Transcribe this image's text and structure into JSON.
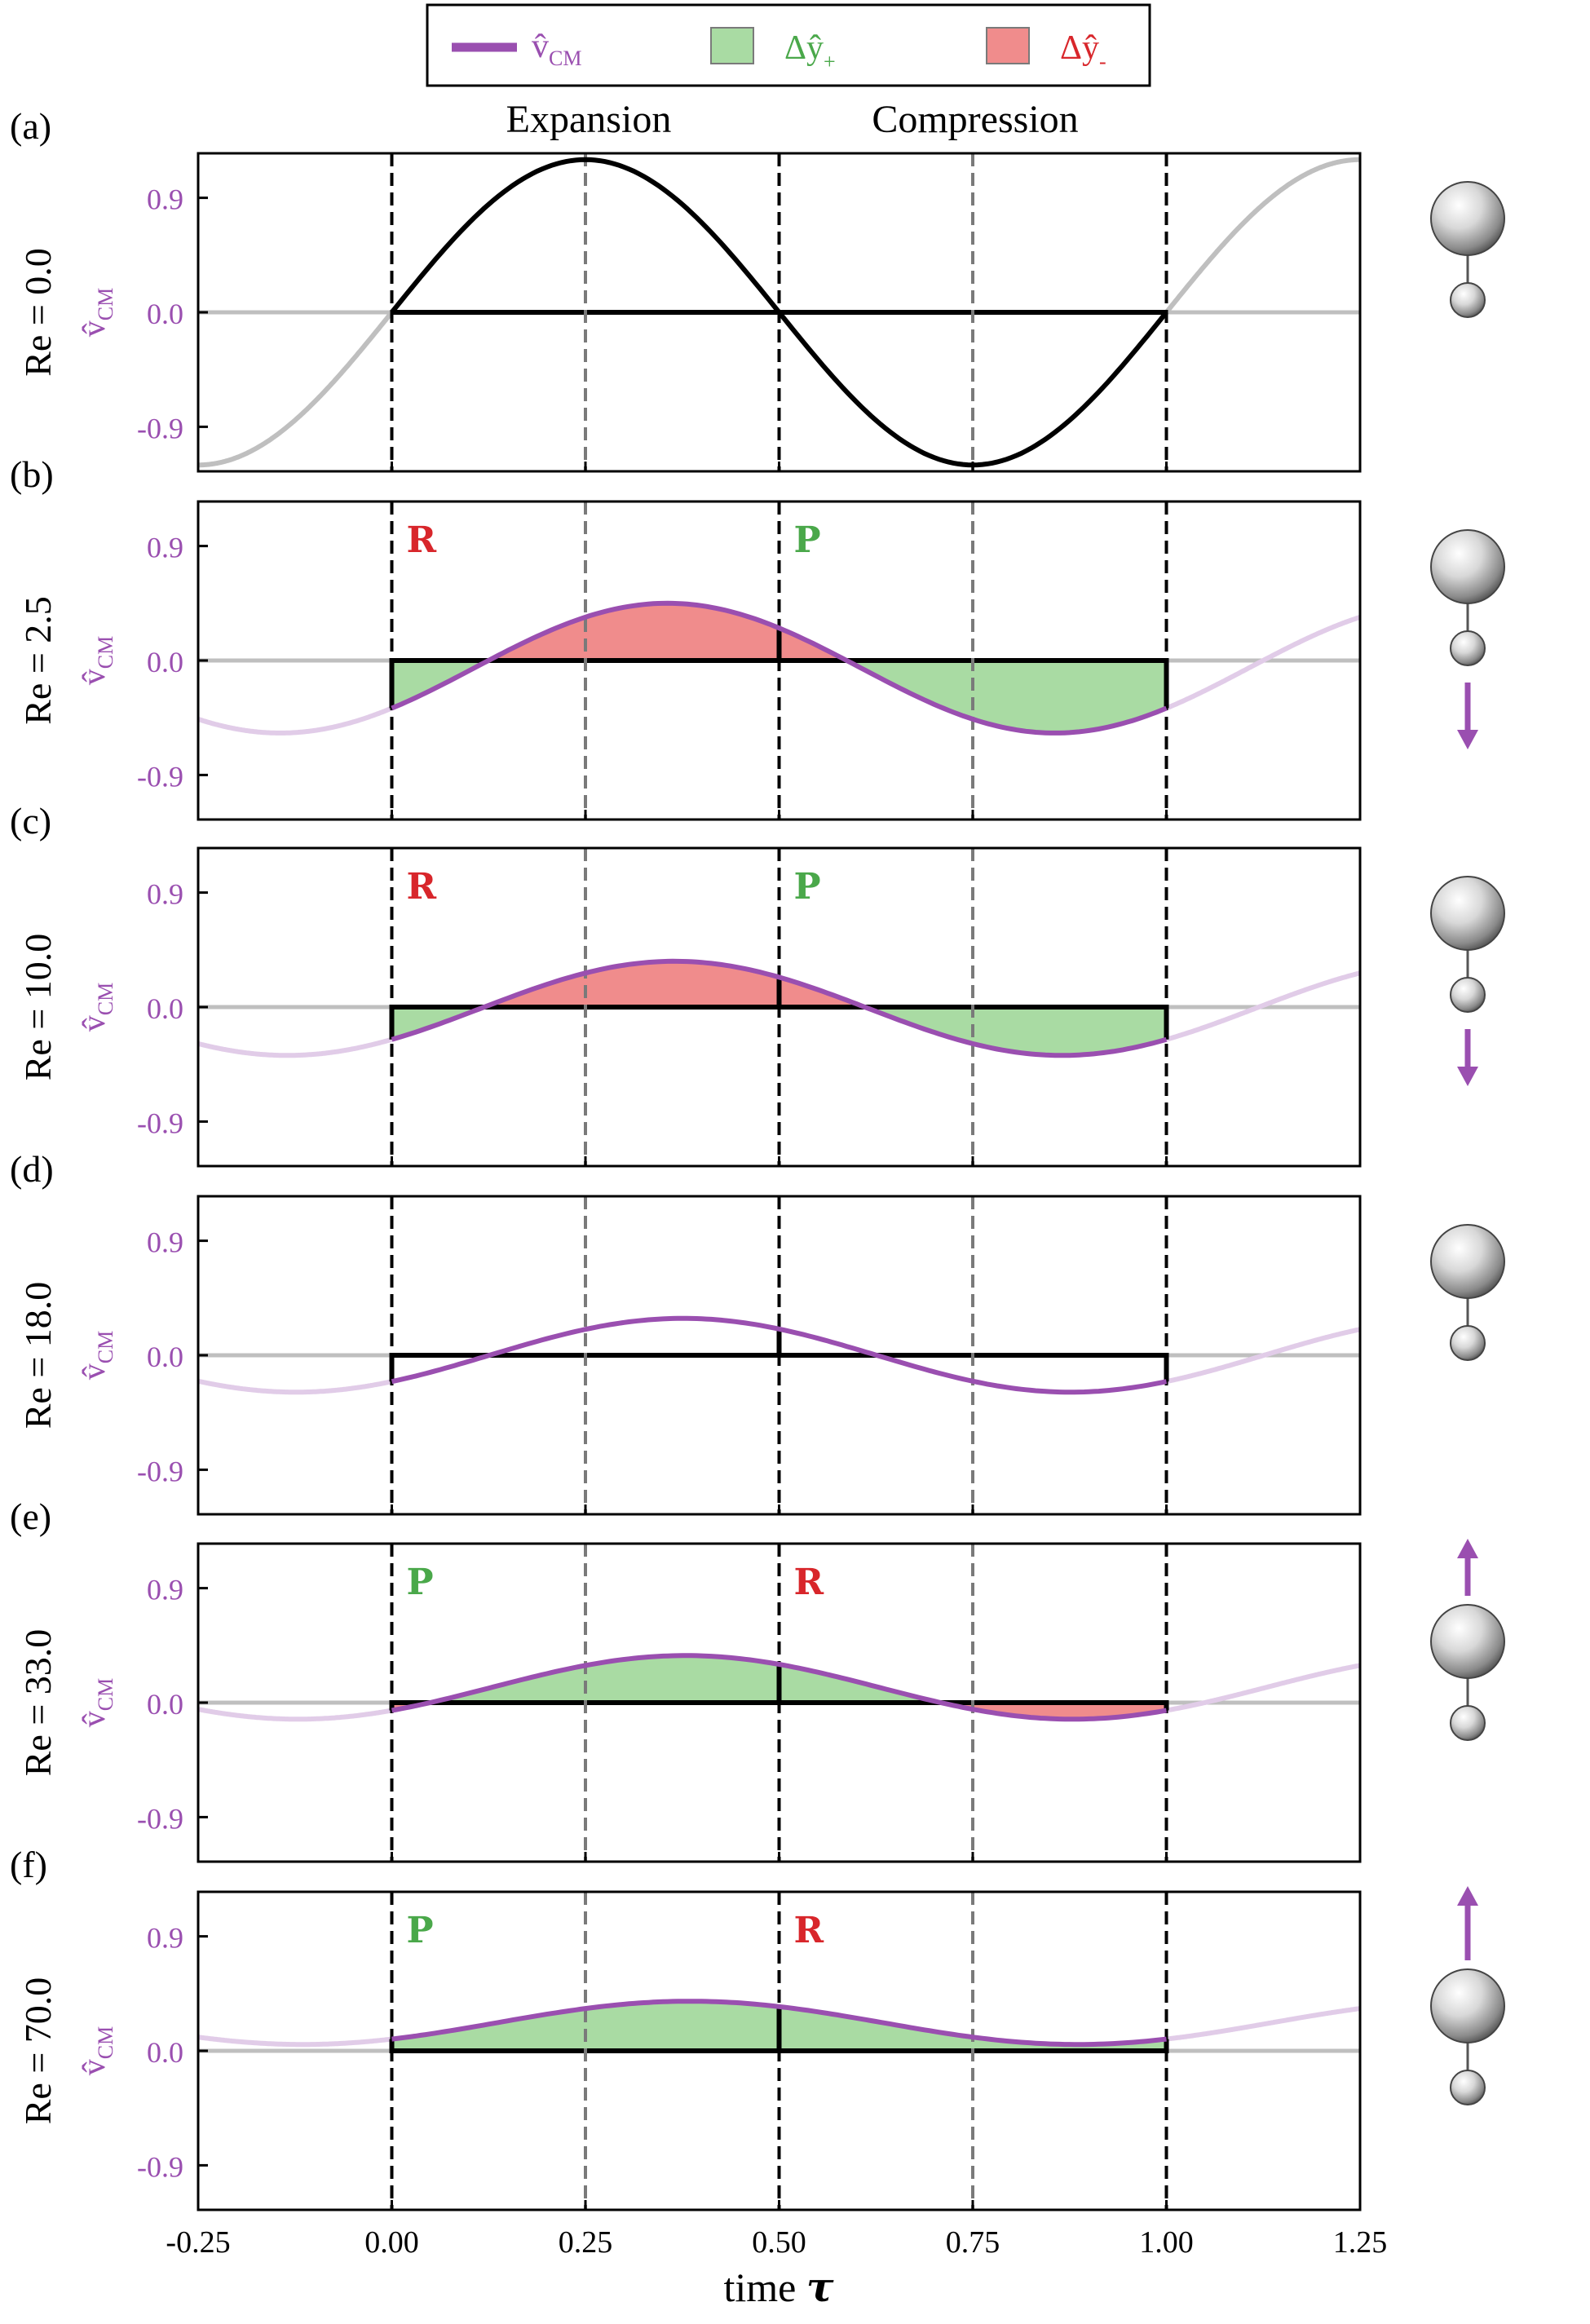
{
  "legend": {
    "vcm_label": "v̂",
    "vcm_sub": "CM",
    "dyplus_label": "Δŷ",
    "dyplus_sub": "+",
    "dyminus_label": "Δŷ",
    "dyminus_sub": "-"
  },
  "header": {
    "expansion": "Expansion",
    "compression": "Compression"
  },
  "xaxis": {
    "label": "time",
    "label_symbol": "τ"
  },
  "ylabel": {
    "symbol": "v̂",
    "sub": "CM"
  },
  "colors": {
    "purple": "#9a4fb0",
    "purple_light": "#e1cce8",
    "green_fill": "#a9dba3",
    "red_fill": "#f08c8c",
    "green_text": "#4aa84a",
    "red_text": "#d8262b",
    "gray_line": "#bfbfbf"
  },
  "chart_data": {
    "type": "line",
    "x_ticks": [
      "-0.25",
      "0.00",
      "0.25",
      "0.50",
      "0.75",
      "1.00",
      "1.25"
    ],
    "x_tick_values": [
      -0.25,
      0,
      0.25,
      0.5,
      0.75,
      1.0,
      1.25
    ],
    "y_ticks": [
      "0.9",
      "0.0",
      "-0.9"
    ],
    "y_tick_values": [
      0.9,
      0,
      -0.9
    ],
    "xlim": [
      -0.25,
      1.25
    ],
    "ylim": [
      -1.25,
      1.25
    ],
    "panels": [
      {
        "letter": "(a)",
        "re_label": "Re = 0.0",
        "amp": 1.2,
        "phase": 0.0,
        "offset": 0.0,
        "labels": [
          "",
          ""
        ],
        "arrow": "none",
        "arrow_len": 0,
        "black_curve": true
      },
      {
        "letter": "(b)",
        "re_label": "Re = 2.5",
        "amp": 0.51,
        "phase": 0.106,
        "offset": -0.06,
        "labels": [
          "R",
          "P"
        ],
        "arrow": "down",
        "arrow_len": 0.7,
        "black_curve": false
      },
      {
        "letter": "(c)",
        "re_label": "Re = 10.0",
        "amp": 0.37,
        "phase": 0.115,
        "offset": -0.01,
        "labels": [
          "R",
          "P"
        ],
        "arrow": "down",
        "arrow_len": 0.5,
        "black_curve": false
      },
      {
        "letter": "(d)",
        "re_label": "Re = 18.0",
        "amp": 0.29,
        "phase": 0.126,
        "offset": 0.0,
        "labels": [
          "",
          ""
        ],
        "arrow": "none",
        "arrow_len": 0,
        "black_curve": false
      },
      {
        "letter": "(e)",
        "re_label": "Re = 33.0",
        "amp": 0.25,
        "phase": 0.129,
        "offset": 0.12,
        "labels": [
          "P",
          "R"
        ],
        "arrow": "up",
        "arrow_len": 0.5,
        "black_curve": false
      },
      {
        "letter": "(f)",
        "re_label": "Re = 70.0",
        "amp": 0.17,
        "phase": 0.135,
        "offset": 0.22,
        "labels": [
          "P",
          "R"
        ],
        "arrow": "up",
        "arrow_len": 0.85,
        "black_curve": false
      }
    ]
  }
}
